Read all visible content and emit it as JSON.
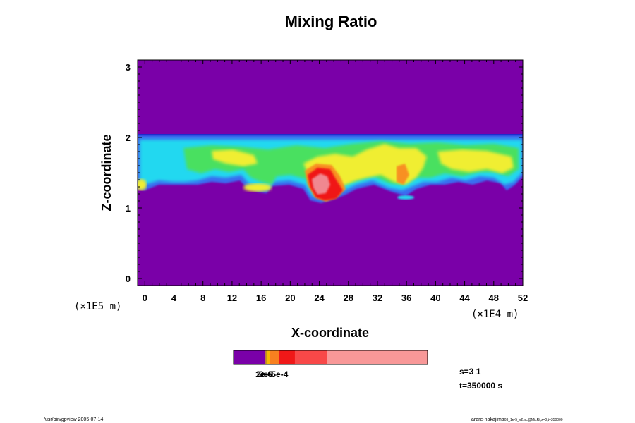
{
  "chart_data": {
    "type": "heatmap",
    "title": "Mixing Ratio",
    "xlabel": "X-coordinate",
    "ylabel": "Z-coordinate",
    "x_scale_label": "(×1E4 m)",
    "y_scale_label": "(×1E5 m)",
    "xlim": [
      -1,
      52
    ],
    "ylim": [
      -0.1,
      3.1
    ],
    "x_ticks": [
      "0",
      "4",
      "8",
      "12",
      "16",
      "20",
      "24",
      "28",
      "32",
      "36",
      "40",
      "44",
      "48",
      "52"
    ],
    "y_ticks": [
      "0",
      "1",
      "2",
      "3"
    ],
    "background_value_color": "#7a00a8",
    "layer": {
      "z_bottom": 1.35,
      "z_top": 2.02,
      "colors": {
        "dark_blue": "#1a22c8",
        "blue": "#3a6cf0",
        "cyan": "#22d8f0",
        "green": "#48e060",
        "yellow": "#f0ee30",
        "orange": "#f89020",
        "red": "#f01818",
        "pink": "#f08890"
      }
    },
    "colorbar": {
      "segments": [
        {
          "color": "#7a00a8",
          "fraction": 0.165
        },
        {
          "color": "#f0c000",
          "fraction": 0.005
        },
        {
          "color": "#2a2a60",
          "fraction": 0.004
        },
        {
          "color": "#f8b800",
          "fraction": 0.012
        },
        {
          "color": "#f88020",
          "fraction": 0.05
        },
        {
          "color": "#f01818",
          "fraction": 0.08
        },
        {
          "color": "#f84848",
          "fraction": 0.165
        },
        {
          "color": "#f89898",
          "fraction": 0.519
        }
      ],
      "overlapping_labels": [
        "1e-6",
        "2e-5",
        "3e-5e-4"
      ]
    },
    "info": {
      "step": "s=3 1",
      "time": "t=350000 s"
    }
  },
  "footer": {
    "left": "/usr/bin/gpview 2005-07-14",
    "right_main": "arare-nakajima",
    "right_small": "03_1e-5_v2.nc@MixRt,x=0,t=350000"
  }
}
